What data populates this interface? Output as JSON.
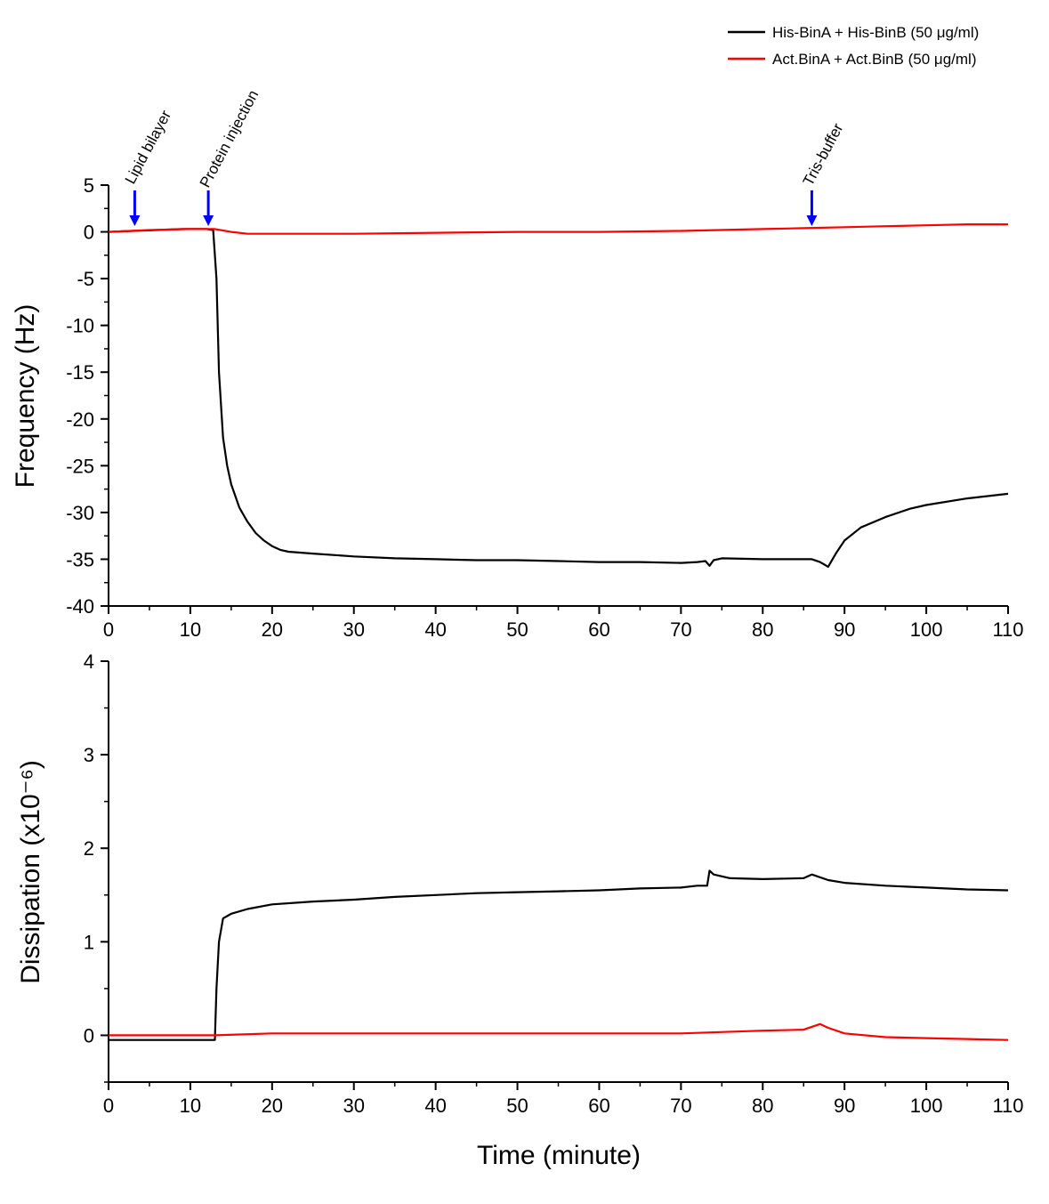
{
  "chart_data": [
    {
      "type": "line",
      "xlabel": "",
      "ylabel": "Frequency (Hz)",
      "xlim": [
        0,
        110
      ],
      "ylim": [
        -40,
        5
      ],
      "xticks": [
        "0",
        "10",
        "20",
        "30",
        "40",
        "50",
        "60",
        "70",
        "80",
        "90",
        "100",
        "110"
      ],
      "yticks": [
        "5",
        "0",
        "-5",
        "-10",
        "-15",
        "-20",
        "-25",
        "-30",
        "-35",
        "-40"
      ],
      "grid": false,
      "legend": {
        "placement": "top-right",
        "entries": [
          "His-BinA + His-BinB (50 μg/ml)",
          "Act.BinA + Act.BinB (50 μg/ml)"
        ]
      },
      "annotations": [
        {
          "text": "Lipid bilayer",
          "x": 3.2,
          "color": "#0000ff"
        },
        {
          "text": "Protein injection",
          "x": 12.2,
          "color": "#0000ff"
        },
        {
          "text": "Tris-buffer",
          "x": 86.0,
          "color": "#0000ff"
        }
      ],
      "series": [
        {
          "name": "His-BinA + His-BinB (50 μg/ml)",
          "color": "#000000",
          "x": [
            0,
            3,
            6,
            9,
            12,
            12.8,
            13.2,
            13.5,
            14,
            14.5,
            15,
            16,
            17,
            18,
            19,
            20,
            21,
            22,
            25,
            30,
            35,
            40,
            45,
            50,
            55,
            60,
            65,
            70,
            72,
            73,
            73.5,
            74,
            75,
            80,
            85,
            86,
            87,
            88,
            89,
            90,
            92,
            95,
            98,
            100,
            105,
            110
          ],
          "y": [
            0,
            0.1,
            0.2,
            0.3,
            0.3,
            0.2,
            -5,
            -15,
            -22,
            -25,
            -27,
            -29.5,
            -31,
            -32.2,
            -33,
            -33.6,
            -34,
            -34.2,
            -34.4,
            -34.7,
            -34.9,
            -35.0,
            -35.1,
            -35.1,
            -35.2,
            -35.3,
            -35.3,
            -35.4,
            -35.3,
            -35.2,
            -35.7,
            -35.1,
            -34.9,
            -35.0,
            -35.0,
            -35.0,
            -35.3,
            -35.8,
            -34.3,
            -33.0,
            -31.6,
            -30.5,
            -29.6,
            -29.2,
            -28.5,
            -28.0
          ]
        },
        {
          "name": "Act.BinA + Act.BinB (50 μg/ml)",
          "color": "#ff0000",
          "x": [
            0,
            5,
            10,
            12,
            13,
            15,
            17,
            20,
            25,
            30,
            40,
            50,
            60,
            70,
            80,
            85,
            90,
            95,
            100,
            105,
            110
          ],
          "y": [
            0,
            0.2,
            0.3,
            0.3,
            0.3,
            0.0,
            -0.2,
            -0.2,
            -0.2,
            -0.2,
            -0.1,
            0.0,
            0.0,
            0.1,
            0.3,
            0.4,
            0.5,
            0.6,
            0.7,
            0.8,
            0.8
          ]
        }
      ]
    },
    {
      "type": "line",
      "xlabel": "Time (minute)",
      "ylabel": "Dissipation (x10⁻⁶)",
      "xlim": [
        0,
        110
      ],
      "ylim": [
        -0.5,
        4
      ],
      "xticks": [
        "0",
        "10",
        "20",
        "30",
        "40",
        "50",
        "60",
        "70",
        "80",
        "90",
        "100",
        "110"
      ],
      "yticks": [
        "4",
        "3",
        "2",
        "1",
        "0"
      ],
      "grid": false,
      "series": [
        {
          "name": "His-BinA + His-BinB (50 μg/ml)",
          "color": "#000000",
          "x": [
            0,
            3,
            6,
            9,
            12,
            13.0,
            13.2,
            13.5,
            14,
            15,
            17,
            20,
            25,
            30,
            35,
            40,
            45,
            50,
            55,
            60,
            65,
            70,
            72,
            73.2,
            73.5,
            74,
            76,
            80,
            85,
            86,
            88,
            90,
            95,
            100,
            105,
            110
          ],
          "y": [
            -0.05,
            -0.05,
            -0.05,
            -0.05,
            -0.05,
            -0.05,
            0.5,
            1.0,
            1.25,
            1.3,
            1.35,
            1.4,
            1.43,
            1.45,
            1.48,
            1.5,
            1.52,
            1.53,
            1.54,
            1.55,
            1.57,
            1.58,
            1.6,
            1.6,
            1.76,
            1.72,
            1.68,
            1.67,
            1.68,
            1.72,
            1.66,
            1.63,
            1.6,
            1.58,
            1.56,
            1.55
          ]
        },
        {
          "name": "Act.BinA + Act.BinB (50 μg/ml)",
          "color": "#ff0000",
          "x": [
            0,
            10,
            13,
            20,
            30,
            40,
            50,
            60,
            70,
            80,
            85,
            87,
            88,
            90,
            95,
            100,
            105,
            110
          ],
          "y": [
            0.0,
            0.0,
            0.0,
            0.02,
            0.02,
            0.02,
            0.02,
            0.02,
            0.02,
            0.05,
            0.06,
            0.12,
            0.08,
            0.02,
            -0.02,
            -0.03,
            -0.04,
            -0.05
          ]
        }
      ]
    }
  ]
}
